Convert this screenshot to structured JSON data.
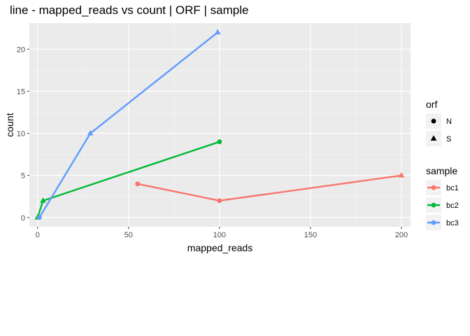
{
  "chart_data": {
    "type": "line",
    "title": "line - mapped_reads vs count | ORF | sample",
    "xlabel": "mapped_reads",
    "ylabel": "count",
    "xlim": [
      -4.5,
      205
    ],
    "ylim": [
      -1.1,
      23.1
    ],
    "x_ticks": [
      0,
      50,
      100,
      150,
      200
    ],
    "y_ticks": [
      0,
      5,
      10,
      15,
      20
    ],
    "grid": true,
    "legend_position": "right",
    "series": [
      {
        "name": "bc1",
        "color": "#F8766D",
        "points": [
          {
            "x": 55,
            "y": 4,
            "orf": "N"
          },
          {
            "x": 100,
            "y": 2,
            "orf": "N"
          },
          {
            "x": 200,
            "y": 5,
            "orf": "S"
          }
        ]
      },
      {
        "name": "bc2",
        "color": "#00BA38",
        "points": [
          {
            "x": 0,
            "y": 0,
            "orf": "S"
          },
          {
            "x": 3,
            "y": 2,
            "orf": "S"
          },
          {
            "x": 100,
            "y": 9,
            "orf": "N"
          }
        ]
      },
      {
        "name": "bc3",
        "color": "#619CFF",
        "points": [
          {
            "x": 1,
            "y": 0,
            "orf": "N"
          },
          {
            "x": 29,
            "y": 10,
            "orf": "S"
          },
          {
            "x": 99,
            "y": 22,
            "orf": "S"
          }
        ]
      }
    ],
    "legends": [
      {
        "title": "orf",
        "type": "shape",
        "entries": [
          {
            "label": "N",
            "shape": "circle"
          },
          {
            "label": "S",
            "shape": "triangle"
          }
        ]
      },
      {
        "title": "sample",
        "type": "color",
        "entries": [
          {
            "label": "bc1",
            "color": "#F8766D"
          },
          {
            "label": "bc2",
            "color": "#00BA38"
          },
          {
            "label": "bc3",
            "color": "#619CFF"
          }
        ]
      }
    ]
  }
}
